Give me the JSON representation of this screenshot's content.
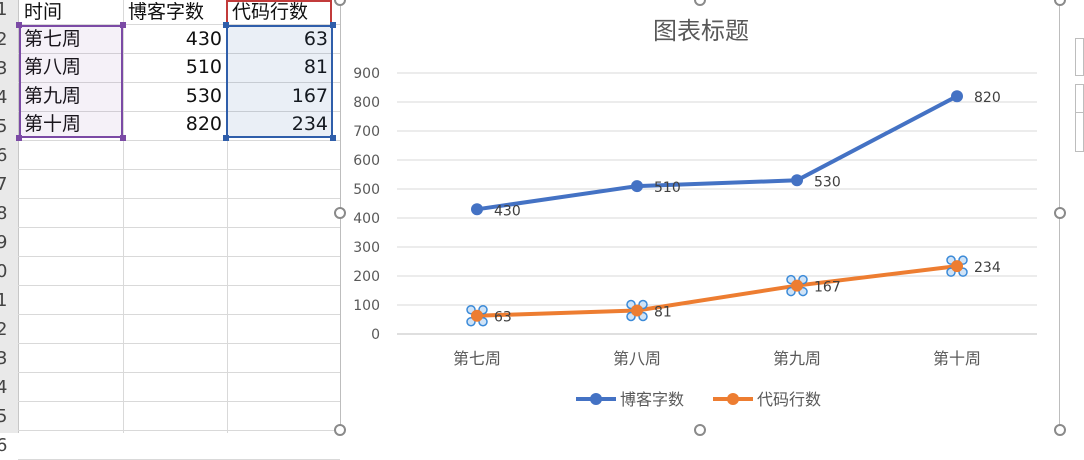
{
  "sheet": {
    "row_numbers": [
      "1",
      "2",
      "3",
      "4",
      "5",
      "6",
      "7",
      "8",
      "9",
      "0",
      "1",
      "2",
      "3",
      "4",
      "5",
      "6"
    ],
    "headers": {
      "col_a": "时间",
      "col_b": "博客字数",
      "col_c": "代码行数"
    },
    "rows": [
      {
        "time": "第七周",
        "words": "430",
        "lines": "63"
      },
      {
        "time": "第八周",
        "words": "510",
        "lines": "81"
      },
      {
        "time": "第九周",
        "words": "530",
        "lines": "167"
      },
      {
        "time": "第十周",
        "words": "820",
        "lines": "234"
      }
    ]
  },
  "chart_data": {
    "type": "line",
    "title": "图表标题",
    "categories": [
      "第七周",
      "第八周",
      "第九周",
      "第十周"
    ],
    "series": [
      {
        "name": "博客字数",
        "values": [
          430,
          510,
          530,
          820
        ],
        "color": "#4472c4"
      },
      {
        "name": "代码行数",
        "values": [
          63,
          81,
          167,
          234
        ],
        "color": "#ed7d31"
      }
    ],
    "ylim": [
      0,
      900
    ],
    "yticks": [
      "0",
      "100",
      "200",
      "300",
      "400",
      "500",
      "600",
      "700",
      "800",
      "900"
    ],
    "grid": true,
    "legend": "bottom",
    "data_labels": true
  }
}
